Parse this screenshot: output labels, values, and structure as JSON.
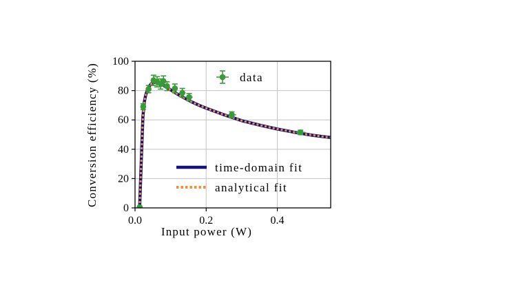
{
  "chart_data": {
    "type": "scatter",
    "xlabel": "Input power (W)",
    "ylabel": "Conversion efficiency (%)",
    "xlim": [
      0,
      0.55
    ],
    "ylim": [
      0,
      100
    ],
    "xticks": [
      0.0,
      0.2,
      0.4
    ],
    "xtick_labels": [
      "0.0",
      "0.2",
      "0.4"
    ],
    "yticks": [
      0,
      20,
      40,
      60,
      80,
      100
    ],
    "ytick_labels": [
      "0",
      "20",
      "40",
      "60",
      "80",
      "100"
    ],
    "grid": true,
    "legend_placement": "right",
    "series": [
      {
        "name": "data",
        "kind": "errorbar-scatter",
        "color": "#3a9a3a",
        "points": [
          {
            "x": 0.013,
            "y": 0.5,
            "xerr": 0.0,
            "yerr": 0.0
          },
          {
            "x": 0.023,
            "y": 69,
            "xerr": 0.003,
            "yerr": 2
          },
          {
            "x": 0.038,
            "y": 81,
            "xerr": 0.004,
            "yerr": 2.5
          },
          {
            "x": 0.052,
            "y": 87,
            "xerr": 0.006,
            "yerr": 3.5
          },
          {
            "x": 0.062,
            "y": 86,
            "xerr": 0.006,
            "yerr": 3.5
          },
          {
            "x": 0.072,
            "y": 84.5,
            "xerr": 0.007,
            "yerr": 3.5
          },
          {
            "x": 0.08,
            "y": 86.5,
            "xerr": 0.007,
            "yerr": 3.5
          },
          {
            "x": 0.09,
            "y": 83,
            "xerr": 0.008,
            "yerr": 3
          },
          {
            "x": 0.112,
            "y": 81.5,
            "xerr": 0.008,
            "yerr": 3
          },
          {
            "x": 0.133,
            "y": 78.5,
            "xerr": 0.009,
            "yerr": 3
          },
          {
            "x": 0.152,
            "y": 75.5,
            "xerr": 0.01,
            "yerr": 2.5
          },
          {
            "x": 0.272,
            "y": 63.5,
            "xerr": 0.012,
            "yerr": 2
          },
          {
            "x": 0.465,
            "y": 51.5,
            "xerr": 0.014,
            "yerr": 1.5
          }
        ]
      },
      {
        "name": "time-domain fit",
        "kind": "line",
        "color": "#13137a",
        "x": [
          0.013,
          0.018,
          0.022,
          0.026,
          0.03,
          0.035,
          0.04,
          0.045,
          0.05,
          0.055,
          0.06,
          0.065,
          0.07,
          0.08,
          0.09,
          0.1,
          0.12,
          0.14,
          0.16,
          0.18,
          0.2,
          0.25,
          0.3,
          0.35,
          0.4,
          0.45,
          0.5,
          0.55
        ],
        "y": [
          0.5,
          35,
          62,
          72,
          77,
          80.5,
          83,
          84.5,
          85.3,
          85.6,
          85.6,
          85.3,
          84.8,
          83.5,
          82,
          80.5,
          77.5,
          74.8,
          72.2,
          70,
          68,
          63.5,
          59.5,
          56.5,
          53.8,
          51.5,
          49.5,
          48
        ]
      },
      {
        "name": "analytical fit",
        "kind": "dotted-line",
        "color": "#f0923a",
        "x": [
          0.013,
          0.018,
          0.022,
          0.026,
          0.03,
          0.035,
          0.04,
          0.045,
          0.05,
          0.055,
          0.06,
          0.065,
          0.07,
          0.08,
          0.09,
          0.1,
          0.12,
          0.14,
          0.16,
          0.18,
          0.2,
          0.25,
          0.3,
          0.35,
          0.4,
          0.45,
          0.5,
          0.55
        ],
        "y": [
          0.5,
          35,
          62,
          72,
          77,
          80.5,
          83,
          84.5,
          85.3,
          85.6,
          85.6,
          85.3,
          84.8,
          83.5,
          82,
          80.5,
          77.5,
          74.8,
          72.2,
          70,
          68,
          63.5,
          59.5,
          56.5,
          53.8,
          51.5,
          49.5,
          48
        ]
      }
    ]
  }
}
